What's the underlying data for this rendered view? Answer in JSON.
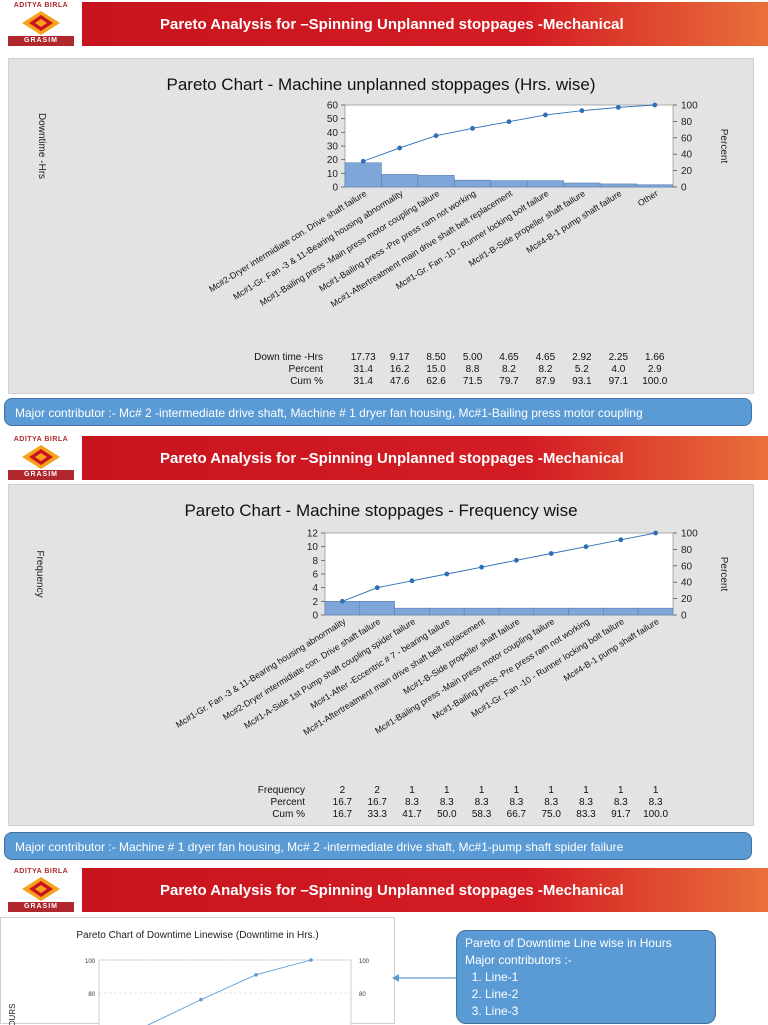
{
  "brand": {
    "top": "ADITYA BIRLA",
    "bottom": "GRASIM"
  },
  "slides": [
    {
      "banner": "Pareto Analysis for –Spinning Unplanned stoppages -Mechanical",
      "chart_title": "Pareto Chart - Machine unplanned stoppages (Hrs. wise)",
      "callout": "Major contributor :- Mc# 2 -intermediate drive shaft, Machine # 1 dryer fan housing, Mc#1-Bailing press motor coupling"
    },
    {
      "banner": "Pareto Analysis for –Spinning Unplanned stoppages -Mechanical",
      "chart_title": "Pareto Chart  - Machine stoppages - Frequency wise",
      "callout": "Major contributor :- Machine # 1 dryer fan housing, Mc# 2 -intermediate drive shaft, Mc#1-pump shaft spider failure"
    },
    {
      "banner": "Pareto Analysis for –Spinning Unplanned stoppages -Mechanical",
      "chart_title": "Pareto Chart of Downtime Linewise (Downtime in Hrs.)",
      "callout": {
        "title": "Pareto of Downtime Line wise in Hours",
        "subtitle": "Major contributors :-",
        "items": [
          "Line-1",
          "Line-2",
          "Line-3"
        ]
      }
    }
  ],
  "chart_data": [
    {
      "type": "bar",
      "title": "Pareto Chart - Machine unplanned stoppages (Hrs. wise)",
      "ylabel": "Downtime -Hrs",
      "y2label": "Percent",
      "ylim": [
        0,
        60
      ],
      "y2lim": [
        0,
        100
      ],
      "yticks": [
        0,
        10,
        20,
        30,
        40,
        50,
        60
      ],
      "y2ticks": [
        0,
        20,
        40,
        60,
        80,
        100
      ],
      "categories": [
        "Mc#2-Dryer intermidiate con. Drive shaft failure",
        "Mc#1-Gr. Fan -3 & 11-Bearing housing abnormality",
        "Mc#1-Bailing press -Main press motor coupling failure",
        "Mc#1-Bailing press -Pre press ram not working",
        "Mc#1-Aftertreatment main drive shaft belt replacement",
        "Mc#1-Gr. Fan -10 - Runner locking bolt failure",
        "Mc#1-B-Side propeller shaft failure",
        "Mc#4-B-1 pump shaft failure",
        "Other"
      ],
      "values": [
        17.73,
        9.17,
        8.5,
        5.0,
        4.65,
        4.65,
        2.92,
        2.25,
        1.66
      ],
      "table_labels": [
        "Down time -Hrs",
        "Percent",
        "Cum %"
      ],
      "table": [
        [
          "17.73",
          "9.17",
          "8.50",
          "5.00",
          "4.65",
          "4.65",
          "2.92",
          "2.25",
          "1.66"
        ],
        [
          "31.4",
          "16.2",
          "15.0",
          "8.8",
          "8.2",
          "8.2",
          "5.2",
          "4.0",
          "2.9"
        ],
        [
          "31.4",
          "47.6",
          "62.6",
          "71.5",
          "79.7",
          "87.9",
          "93.1",
          "97.1",
          "100.0"
        ]
      ],
      "cum_percent": [
        31.4,
        47.6,
        62.6,
        71.5,
        79.7,
        87.9,
        93.1,
        97.1,
        100.0
      ],
      "colors": {
        "bar": "#7ea6d8",
        "line": "#2e6fb7"
      }
    },
    {
      "type": "bar",
      "title": "Pareto Chart  - Machine stoppages - Frequency wise",
      "ylabel": "Frequency",
      "y2label": "Percent",
      "ylim": [
        0,
        12
      ],
      "y2lim": [
        0,
        100
      ],
      "yticks": [
        0,
        2,
        4,
        6,
        8,
        10,
        12
      ],
      "y2ticks": [
        0,
        20,
        40,
        60,
        80,
        100
      ],
      "categories": [
        "Mc#1-Gr. Fan -3 & 11-Bearing housing abnormality",
        "Mc#2-Dryer intermidiate con. Drive shaft failure",
        "Mc#1-A-Side 1st Pump shaft coupling spider failure",
        "Mc#1-After -Eccentric # 7 - bearing failure",
        "Mc#1-Aftertreatment main drive shaft belt replacement",
        "Mc#1-B-Side propeller shaft failure",
        "Mc#1-Bailing press -Main press motor coupling failure",
        "Mc#1-Bailing press -Pre press ram not working",
        "Mc#1-Gr. Fan -10 - Runner locking bolt failure",
        "Mc#4-B-1 pump shaft failure"
      ],
      "values": [
        2,
        2,
        1,
        1,
        1,
        1,
        1,
        1,
        1,
        1
      ],
      "table_labels": [
        "Frequency",
        "Percent",
        "Cum %"
      ],
      "table": [
        [
          "2",
          "2",
          "1",
          "1",
          "1",
          "1",
          "1",
          "1",
          "1",
          "1"
        ],
        [
          "16.7",
          "16.7",
          "8.3",
          "8.3",
          "8.3",
          "8.3",
          "8.3",
          "8.3",
          "8.3",
          "8.3"
        ],
        [
          "16.7",
          "33.3",
          "41.7",
          "50.0",
          "58.3",
          "66.7",
          "75.0",
          "83.3",
          "91.7",
          "100.0"
        ]
      ],
      "cum_percent": [
        16.7,
        33.3,
        41.7,
        50.0,
        58.3,
        66.7,
        75.0,
        83.3,
        91.7,
        100.0
      ],
      "colors": {
        "bar": "#7ea6d8",
        "line": "#2e6fb7"
      }
    },
    {
      "type": "line",
      "title": "Pareto Chart of Downtime Linewise (Downtime in Hrs.)",
      "ylabel": "HOURS",
      "y2ticks_visible": [
        "100",
        "80"
      ],
      "yticks_visible": [
        "100",
        "80"
      ],
      "cum_percent_visible": [
        76,
        91,
        100
      ],
      "colors": {
        "line": "#5b9bd5"
      }
    }
  ]
}
